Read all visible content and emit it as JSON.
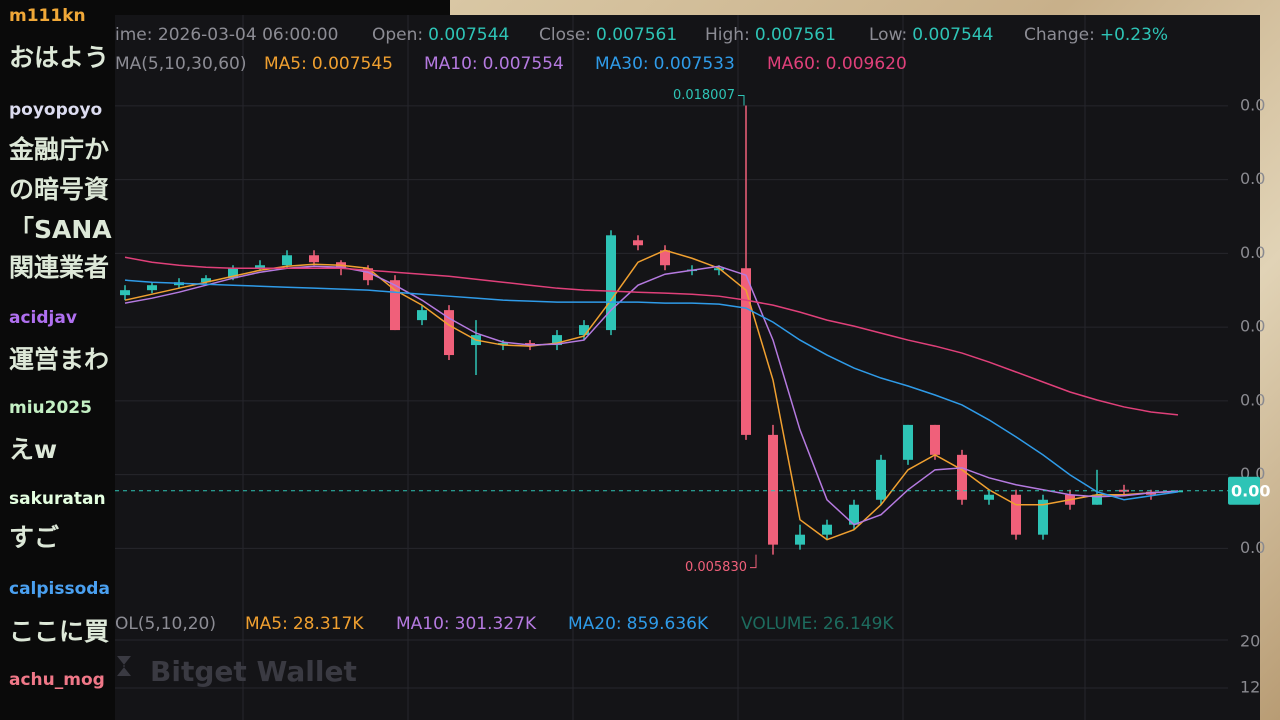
{
  "chat": {
    "messages": [
      {
        "user": "m111kn",
        "color": "#f0a838",
        "lines": [
          "おはよう"
        ]
      },
      {
        "user": "poyopoyo",
        "color": "#dcdcf0",
        "lines": [
          "金融庁か",
          "の暗号資",
          "「SANA",
          "関連業者"
        ]
      },
      {
        "user": "acidjav",
        "color": "#b070f0",
        "lines": [
          "運営まわ"
        ]
      },
      {
        "user": "miu2025",
        "color": "#c4f0c4",
        "lines": [
          "えw"
        ]
      },
      {
        "user": "sakuratan",
        "color": "#e4ffe0",
        "lines": [
          "すご"
        ]
      },
      {
        "user": "calpissoda",
        "color": "#4aa0f0",
        "lines": [
          "ここに買"
        ]
      },
      {
        "user": "achu_mog",
        "color": "#f07888",
        "lines": []
      }
    ]
  },
  "header": {
    "time": "ime: 2026-03-04 06:00:00",
    "items": [
      {
        "label": "Open:",
        "value": "0.007544"
      },
      {
        "label": "Close:",
        "value": "0.007561"
      },
      {
        "label": "High:",
        "value": "0.007561"
      },
      {
        "label": "Low:",
        "value": "0.007544"
      },
      {
        "label": "Change:",
        "value": "+0.23%"
      }
    ]
  },
  "ma_row": {
    "title": "MA(5,10,30,60)",
    "items": [
      {
        "label": "MA5:",
        "value": "0.007545",
        "color": "#f0a030"
      },
      {
        "label": "MA10:",
        "value": "0.007554",
        "color": "#b57ae0"
      },
      {
        "label": "MA30:",
        "value": "0.007533",
        "color": "#2f9be8"
      },
      {
        "label": "MA60:",
        "value": "0.009620",
        "color": "#e0407a"
      }
    ]
  },
  "vol_row": {
    "title": "OL(5,10,20)",
    "items": [
      {
        "label": "MA5:",
        "value": "28.317K",
        "color": "#f0a030"
      },
      {
        "label": "MA10:",
        "value": "301.327K",
        "color": "#b57ae0"
      },
      {
        "label": "MA20:",
        "value": "859.636K",
        "color": "#2f9be8"
      },
      {
        "label": "VOLUME:",
        "value": "26.149K",
        "color": "#1d6b5e"
      }
    ]
  },
  "watermark": "Bitget Wallet",
  "volume_axis_labels": [
    "20",
    "12"
  ],
  "chart_data": {
    "type": "candlestick",
    "up_color": "#2ec4b6",
    "down_color": "#f0607a",
    "ylim": [
      0.0187,
      0.0046
    ],
    "yticks": [
      {
        "value": 0.018,
        "label": "0.0"
      },
      {
        "value": 0.016,
        "label": "0.0"
      },
      {
        "value": 0.014,
        "label": "0.0"
      },
      {
        "value": 0.012,
        "label": "0.0"
      },
      {
        "value": 0.01,
        "label": "0.0"
      },
      {
        "value": 0.008,
        "label": "0.0"
      },
      {
        "value": 0.006,
        "label": "0.0"
      }
    ],
    "last_price": {
      "value": 0.007561,
      "label": "0.00"
    },
    "annotations": [
      {
        "value": 0.018007,
        "label": "0.018007"
      },
      {
        "value": 0.00583,
        "label": "0.005830"
      }
    ],
    "open": [
      0.012866,
      0.013001,
      0.013136,
      0.013217,
      0.013326,
      0.013596,
      0.013677,
      0.013948,
      0.013759,
      0.013596,
      0.013272,
      0.012189,
      0.01246,
      0.011513,
      0.011513,
      0.011567,
      0.011513,
      0.011783,
      0.011919,
      0.014354,
      0.014083,
      0.013542,
      0.013542,
      0.013596,
      0.009077,
      0.006101,
      0.006371,
      0.006642,
      0.007318,
      0.008401,
      0.009348,
      0.008536,
      0.007318,
      0.007454,
      0.006371,
      0.007454,
      0.007183,
      0.007589,
      0.007535,
      0.007544
    ],
    "high": [
      0.013136,
      0.013217,
      0.013326,
      0.013407,
      0.013677,
      0.013813,
      0.014083,
      0.014083,
      0.013813,
      0.013677,
      0.013407,
      0.012595,
      0.012595,
      0.012189,
      0.011648,
      0.011648,
      0.011919,
      0.012189,
      0.014625,
      0.014489,
      0.014219,
      0.013677,
      0.013677,
      0.018007,
      0.009348,
      0.006642,
      0.006777,
      0.007318,
      0.008536,
      0.009348,
      0.009348,
      0.008671,
      0.007589,
      0.007589,
      0.007454,
      0.007589,
      0.00813,
      0.007724,
      0.007589,
      0.007561
    ],
    "low": [
      0.01273,
      0.01292,
      0.013055,
      0.013136,
      0.013272,
      0.013542,
      0.013596,
      0.013677,
      0.013407,
      0.013136,
      0.011919,
      0.012054,
      0.011107,
      0.010701,
      0.011377,
      0.011377,
      0.011377,
      0.011648,
      0.011783,
      0.014083,
      0.013542,
      0.013407,
      0.013407,
      0.008942,
      0.00583,
      0.005965,
      0.006236,
      0.006507,
      0.007183,
      0.008265,
      0.008401,
      0.007183,
      0.007183,
      0.006236,
      0.006236,
      0.007048,
      0.007183,
      0.007454,
      0.007318,
      0.007544
    ],
    "close": [
      0.013001,
      0.013136,
      0.013217,
      0.013326,
      0.013596,
      0.013677,
      0.013948,
      0.013759,
      0.013596,
      0.013272,
      0.011919,
      0.01246,
      0.011242,
      0.011783,
      0.011567,
      0.011513,
      0.011783,
      0.012054,
      0.014489,
      0.014219,
      0.013677,
      0.01356,
      0.013596,
      0.009077,
      0.006101,
      0.006371,
      0.006642,
      0.007183,
      0.008401,
      0.009348,
      0.008536,
      0.007318,
      0.007454,
      0.006371,
      0.007318,
      0.007183,
      0.007454,
      0.007535,
      0.007454,
      0.007561
    ],
    "series": [
      {
        "color": "#f0a030",
        "values": [
          0.01273,
          0.012892,
          0.013055,
          0.013217,
          0.013379,
          0.013542,
          0.01365,
          0.013704,
          0.013677,
          0.013596,
          0.013001,
          0.012595,
          0.012054,
          0.011648,
          0.011513,
          0.011485,
          0.011567,
          0.011756,
          0.01273,
          0.013759,
          0.014083,
          0.013867,
          0.013596,
          0.013001,
          0.010565,
          0.006777,
          0.006236,
          0.006507,
          0.007183,
          0.00813,
          0.008536,
          0.00813,
          0.007589,
          0.007183,
          0.007183,
          0.007318,
          0.007454,
          0.007454,
          0.007507,
          0.007545
        ]
      },
      {
        "color": "#b57ae0",
        "values": [
          0.012649,
          0.012784,
          0.012946,
          0.013136,
          0.013326,
          0.013488,
          0.013596,
          0.01365,
          0.013623,
          0.013488,
          0.013136,
          0.01273,
          0.012243,
          0.011837,
          0.011593,
          0.011513,
          0.011539,
          0.011648,
          0.01246,
          0.013136,
          0.013434,
          0.013542,
          0.01365,
          0.013407,
          0.011648,
          0.009212,
          0.007318,
          0.006642,
          0.006912,
          0.007589,
          0.00813,
          0.008184,
          0.007913,
          0.007724,
          0.007589,
          0.007454,
          0.007399,
          0.007426,
          0.007507,
          0.007554
        ]
      },
      {
        "color": "#2f9be8",
        "values": [
          0.013272,
          0.013217,
          0.01319,
          0.013163,
          0.013136,
          0.013109,
          0.013082,
          0.013055,
          0.013028,
          0.013001,
          0.012946,
          0.012892,
          0.012838,
          0.012784,
          0.01273,
          0.012703,
          0.012676,
          0.012676,
          0.012676,
          0.012676,
          0.012649,
          0.012649,
          0.012622,
          0.012514,
          0.012135,
          0.011648,
          0.011242,
          0.01089,
          0.010619,
          0.010403,
          0.010159,
          0.009889,
          0.009483,
          0.009023,
          0.008536,
          0.007994,
          0.007535,
          0.007318,
          0.007426,
          0.007533
        ]
      },
      {
        "color": "#e0407a",
        "values": [
          0.013894,
          0.013758,
          0.013677,
          0.013623,
          0.013596,
          0.013596,
          0.013596,
          0.013596,
          0.013596,
          0.013542,
          0.013488,
          0.013434,
          0.013379,
          0.013298,
          0.013217,
          0.013136,
          0.013055,
          0.013001,
          0.012974,
          0.012946,
          0.01292,
          0.012892,
          0.012838,
          0.01273,
          0.012595,
          0.012405,
          0.012189,
          0.012026,
          0.011837,
          0.011648,
          0.011485,
          0.011296,
          0.011052,
          0.010782,
          0.010511,
          0.01024,
          0.010024,
          0.009835,
          0.009699,
          0.00962
        ]
      }
    ]
  }
}
